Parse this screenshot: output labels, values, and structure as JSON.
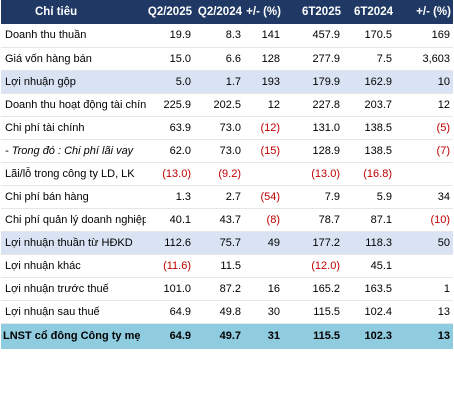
{
  "header": {
    "indicator": "Chỉ tiêu",
    "q2_2025": "Q2/2025",
    "q2_2024": "Q2/2024",
    "q_change": "+/- (%)",
    "h1_2025": "6T2025",
    "h1_2024": "6T2024",
    "h_change": "+/- (%)"
  },
  "rows": [
    {
      "label": "Doanh thu thuần",
      "q25": "19.9",
      "q24": "8.3",
      "qchg": "141",
      "h25": "457.9",
      "h24": "170.5",
      "hchg": "169"
    },
    {
      "label": "Giá vốn hàng bán",
      "q25": "15.0",
      "q24": "6.6",
      "qchg": "128",
      "h25": "277.9",
      "h24": "7.5",
      "hchg": "3,603"
    },
    {
      "label": "Lợi nhuận gộp",
      "q25": "5.0",
      "q24": "1.7",
      "qchg": "193",
      "h25": "179.9",
      "h24": "162.9",
      "hchg": "10"
    },
    {
      "label": "Doanh thu hoạt động tài chính",
      "q25": "225.9",
      "q24": "202.5",
      "qchg": "12",
      "h25": "227.8",
      "h24": "203.7",
      "hchg": "12"
    },
    {
      "label": "Chi phí tài chính",
      "q25": "63.9",
      "q24": "73.0",
      "qchg": "(12)",
      "h25": "131.0",
      "h24": "138.5",
      "hchg": "(5)"
    },
    {
      "label": "- Trong đó : Chi phí lãi vay",
      "q25": "62.0",
      "q24": "73.0",
      "qchg": "(15)",
      "h25": "128.9",
      "h24": "138.5",
      "hchg": "(7)"
    },
    {
      "label": "Lãi/lỗ trong công ty LD, LK",
      "q25": "(13.0)",
      "q24": "(9.2)",
      "qchg": "",
      "h25": "(13.0)",
      "h24": "(16.8)",
      "hchg": ""
    },
    {
      "label": "Chi phí bán hàng",
      "q25": "1.3",
      "q24": "2.7",
      "qchg": "(54)",
      "h25": "7.9",
      "h24": "5.9",
      "hchg": "34"
    },
    {
      "label": "Chi phí quản lý doanh nghiệp",
      "q25": "40.1",
      "q24": "43.7",
      "qchg": "(8)",
      "h25": "78.7",
      "h24": "87.1",
      "hchg": "(10)"
    },
    {
      "label": "Lợi nhuận thuần từ HĐKD",
      "q25": "112.6",
      "q24": "75.7",
      "qchg": "49",
      "h25": "177.2",
      "h24": "118.3",
      "hchg": "50"
    },
    {
      "label": "Lợi nhuận khác",
      "q25": "(11.6)",
      "q24": "11.5",
      "qchg": "",
      "h25": "(12.0)",
      "h24": "45.1",
      "hchg": ""
    },
    {
      "label": "Lợi nhuận trước thuế",
      "q25": "101.0",
      "q24": "87.2",
      "qchg": "16",
      "h25": "165.2",
      "h24": "163.5",
      "hchg": "1"
    },
    {
      "label": "Lợi nhuận sau thuế",
      "q25": "64.9",
      "q24": "49.8",
      "qchg": "30",
      "h25": "115.5",
      "h24": "102.4",
      "hchg": "13"
    },
    {
      "label": "LNST cổ đông Công ty mẹ",
      "q25": "64.9",
      "q24": "49.7",
      "qchg": "31",
      "h25": "115.5",
      "h24": "102.3",
      "hchg": "13"
    }
  ],
  "colors": {
    "header_bg": "#1f3864",
    "highlight_bg": "#dae3f3",
    "total_bg": "#8fcce0",
    "negative": "#c00000"
  }
}
